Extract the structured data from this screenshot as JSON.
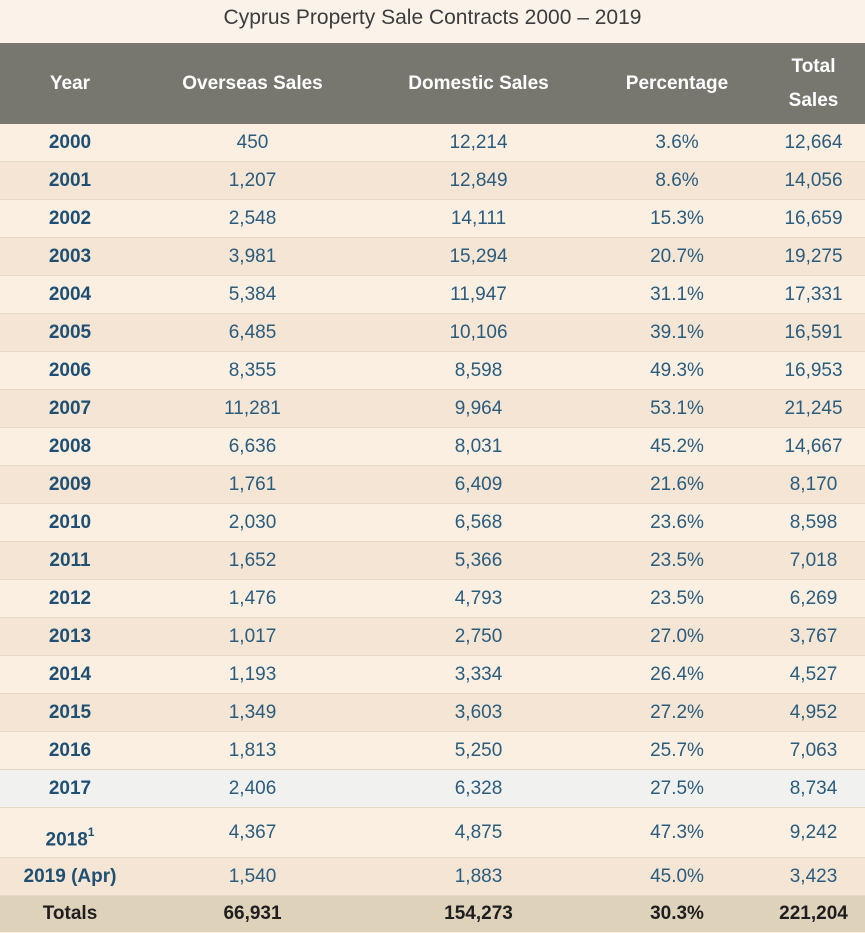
{
  "title": "Cyprus Property Sale Contracts 2000 – 2019",
  "chart_data": {
    "type": "table",
    "title": "Cyprus Property Sale Contracts 2000 – 2019",
    "columns": [
      "Year",
      "Overseas Sales",
      "Domestic Sales",
      "Percentage",
      "Total Sales"
    ],
    "rows": [
      {
        "year": "2000",
        "sup": "",
        "overseas": "450",
        "domestic": "12,214",
        "percentage": "3.6%",
        "total": "12,664"
      },
      {
        "year": "2001",
        "sup": "",
        "overseas": "1,207",
        "domestic": "12,849",
        "percentage": "8.6%",
        "total": "14,056"
      },
      {
        "year": "2002",
        "sup": "",
        "overseas": "2,548",
        "domestic": "14,111",
        "percentage": "15.3%",
        "total": "16,659"
      },
      {
        "year": "2003",
        "sup": "",
        "overseas": "3,981",
        "domestic": "15,294",
        "percentage": "20.7%",
        "total": "19,275"
      },
      {
        "year": "2004",
        "sup": "",
        "overseas": "5,384",
        "domestic": "11,947",
        "percentage": "31.1%",
        "total": "17,331"
      },
      {
        "year": "2005",
        "sup": "",
        "overseas": "6,485",
        "domestic": "10,106",
        "percentage": "39.1%",
        "total": "16,591"
      },
      {
        "year": "2006",
        "sup": "",
        "overseas": "8,355",
        "domestic": "8,598",
        "percentage": "49.3%",
        "total": "16,953"
      },
      {
        "year": "2007",
        "sup": "",
        "overseas": "11,281",
        "domestic": "9,964",
        "percentage": "53.1%",
        "total": "21,245"
      },
      {
        "year": "2008",
        "sup": "",
        "overseas": "6,636",
        "domestic": "8,031",
        "percentage": "45.2%",
        "total": "14,667"
      },
      {
        "year": "2009",
        "sup": "",
        "overseas": "1,761",
        "domestic": "6,409",
        "percentage": "21.6%",
        "total": "8,170"
      },
      {
        "year": "2010",
        "sup": "",
        "overseas": "2,030",
        "domestic": "6,568",
        "percentage": "23.6%",
        "total": "8,598"
      },
      {
        "year": "2011",
        "sup": "",
        "overseas": "1,652",
        "domestic": "5,366",
        "percentage": "23.5%",
        "total": "7,018"
      },
      {
        "year": "2012",
        "sup": "",
        "overseas": "1,476",
        "domestic": "4,793",
        "percentage": "23.5%",
        "total": "6,269"
      },
      {
        "year": "2013",
        "sup": "",
        "overseas": "1,017",
        "domestic": "2,750",
        "percentage": "27.0%",
        "total": "3,767"
      },
      {
        "year": "2014",
        "sup": "",
        "overseas": "1,193",
        "domestic": "3,334",
        "percentage": "26.4%",
        "total": "4,527"
      },
      {
        "year": "2015",
        "sup": "",
        "overseas": "1,349",
        "domestic": "3,603",
        "percentage": "27.2%",
        "total": "4,952"
      },
      {
        "year": "2016",
        "sup": "",
        "overseas": "1,813",
        "domestic": "5,250",
        "percentage": "25.7%",
        "total": "7,063"
      },
      {
        "year": "2017",
        "sup": "",
        "overseas": "2,406",
        "domestic": "6,328",
        "percentage": "27.5%",
        "total": "8,734"
      },
      {
        "year": "2018",
        "sup": "1",
        "overseas": "4,367",
        "domestic": "4,875",
        "percentage": "47.3%",
        "total": "9,242"
      },
      {
        "year": "2019 (Apr)",
        "sup": "",
        "overseas": "1,540",
        "domestic": "1,883",
        "percentage": "45.0%",
        "total": "3,423"
      }
    ],
    "totals": {
      "label": "Totals",
      "overseas": "66,931",
      "domestic": "154,273",
      "percentage": "30.3%",
      "total": "221,204"
    }
  },
  "colors": {
    "header_bg": "#78776f",
    "header_text": "#ffffff",
    "cell_text": "#2a5c7e",
    "row_odd": "#fbefe2",
    "row_even": "#f4e5d4",
    "totals_bg": "#ded2bb"
  }
}
